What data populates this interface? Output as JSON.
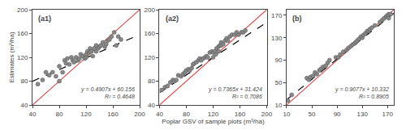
{
  "chart_data": [
    {
      "type": "scatter",
      "title": "(a1)",
      "ylabel": "Estimates (m³/ha)",
      "annotations": [
        "y = 0.4907x + 60.156",
        "R² = 0.4648"
      ],
      "xlim": [
        40,
        200
      ],
      "ylim": [
        40,
        200
      ],
      "xticks": [
        40,
        80,
        120,
        160,
        200
      ],
      "yticks": [
        40,
        80,
        120,
        160,
        200
      ],
      "grid": false,
      "series": [
        {
          "type": "line",
          "color": "#E05050",
          "line_style": "solid",
          "x": [
            40,
            200
          ],
          "values": [
            40,
            200
          ]
        },
        {
          "type": "line",
          "color": "#000000",
          "line_style": "dashed",
          "x": [
            40,
            200
          ],
          "values": [
            79.784,
            158.296
          ]
        },
        {
          "type": "scatter",
          "color": "#888888",
          "marker": "circle",
          "x": [
            48,
            55,
            60,
            65,
            70,
            75,
            80,
            80,
            85,
            88,
            90,
            92,
            95,
            98,
            100,
            102,
            105,
            108,
            110,
            112,
            115,
            118,
            120,
            120,
            122,
            125,
            126,
            128,
            130,
            132,
            135,
            135,
            138,
            140,
            142,
            145,
            148,
            150,
            152,
            155,
            158,
            162,
            165,
            168,
            172
          ],
          "values": [
            75,
            82,
            95,
            90,
            95,
            88,
            80,
            105,
            95,
            115,
            110,
            118,
            108,
            120,
            115,
            112,
            120,
            115,
            118,
            125,
            122,
            118,
            120,
            125,
            130,
            128,
            135,
            130,
            122,
            135,
            140,
            130,
            135,
            138,
            140,
            145,
            138,
            142,
            148,
            150,
            155,
            162,
            140,
            155,
            150
          ]
        }
      ]
    },
    {
      "type": "scatter",
      "title": "(a2)",
      "xlabel": "Poplar GSV of sample plots (m³/ha)",
      "annotations": [
        "y = 0.7365x + 31.424",
        "R² = 0.7086"
      ],
      "xlim": [
        40,
        200
      ],
      "ylim": [
        40,
        200
      ],
      "xticks": [
        40,
        80,
        120,
        160,
        200
      ],
      "yticks": [
        40,
        80,
        120,
        160,
        200
      ],
      "grid": false,
      "series": [
        {
          "type": "line",
          "color": "#E05050",
          "line_style": "solid",
          "x": [
            40,
            200
          ],
          "values": [
            40,
            200
          ]
        },
        {
          "type": "line",
          "color": "#000000",
          "line_style": "dashed",
          "x": [
            40,
            200
          ],
          "values": [
            60.884,
            178.724
          ]
        },
        {
          "type": "scatter",
          "color": "#888888",
          "marker": "circle",
          "x": [
            43,
            48,
            52,
            56,
            60,
            62,
            65,
            68,
            72,
            75,
            78,
            80,
            83,
            85,
            88,
            90,
            92,
            95,
            98,
            100,
            102,
            105,
            108,
            110,
            112,
            115,
            118,
            120,
            120,
            122,
            124,
            125,
            128,
            128,
            130,
            132,
            132,
            135,
            138,
            140,
            142,
            145,
            148,
            152,
            155,
            158,
            162,
            165,
            168
          ],
          "values": [
            65,
            70,
            72,
            78,
            82,
            80,
            82,
            90,
            88,
            92,
            95,
            98,
            100,
            98,
            102,
            108,
            110,
            112,
            115,
            118,
            115,
            118,
            120,
            122,
            120,
            128,
            130,
            120,
            128,
            130,
            125,
            135,
            138,
            130,
            140,
            140,
            145,
            142,
            148,
            152,
            148,
            155,
            158,
            158,
            162,
            158,
            162,
            162,
            165
          ]
        }
      ]
    },
    {
      "type": "scatter",
      "title": "(b)",
      "annotations": [
        "y = 0.9077x + 10.332",
        "R² = 0.8905"
      ],
      "xlim": [
        10,
        180
      ],
      "ylim": [
        10,
        180
      ],
      "xticks": [
        10,
        50,
        90,
        130,
        170
      ],
      "yticks": [
        10,
        50,
        90,
        130,
        170
      ],
      "grid": false,
      "series": [
        {
          "type": "line",
          "color": "#E05050",
          "line_style": "solid",
          "x": [
            10,
            180
          ],
          "values": [
            10,
            180
          ]
        },
        {
          "type": "line",
          "color": "#000000",
          "line_style": "dashed",
          "x": [
            10,
            180
          ],
          "values": [
            19.409,
            173.718
          ]
        },
        {
          "type": "scatter",
          "color": "#888888",
          "marker": "circle",
          "x": [
            12,
            18,
            42,
            45,
            48,
            52,
            55,
            58,
            62,
            65,
            68,
            72,
            75,
            78,
            88,
            92,
            95,
            100,
            105,
            108,
            112,
            115,
            118,
            120,
            122,
            125,
            128,
            130,
            132,
            135,
            138,
            140,
            142,
            145,
            150,
            158,
            162,
            165,
            168,
            170,
            172,
            172,
            175
          ],
          "values": [
            18,
            28,
            58,
            55,
            60,
            62,
            68,
            65,
            72,
            75,
            78,
            80,
            85,
            90,
            95,
            95,
            100,
            105,
            108,
            112,
            115,
            118,
            120,
            122,
            125,
            128,
            132,
            130,
            135,
            138,
            142,
            142,
            145,
            148,
            152,
            158,
            162,
            165,
            168,
            170,
            165,
            172,
            172
          ]
        }
      ]
    }
  ]
}
